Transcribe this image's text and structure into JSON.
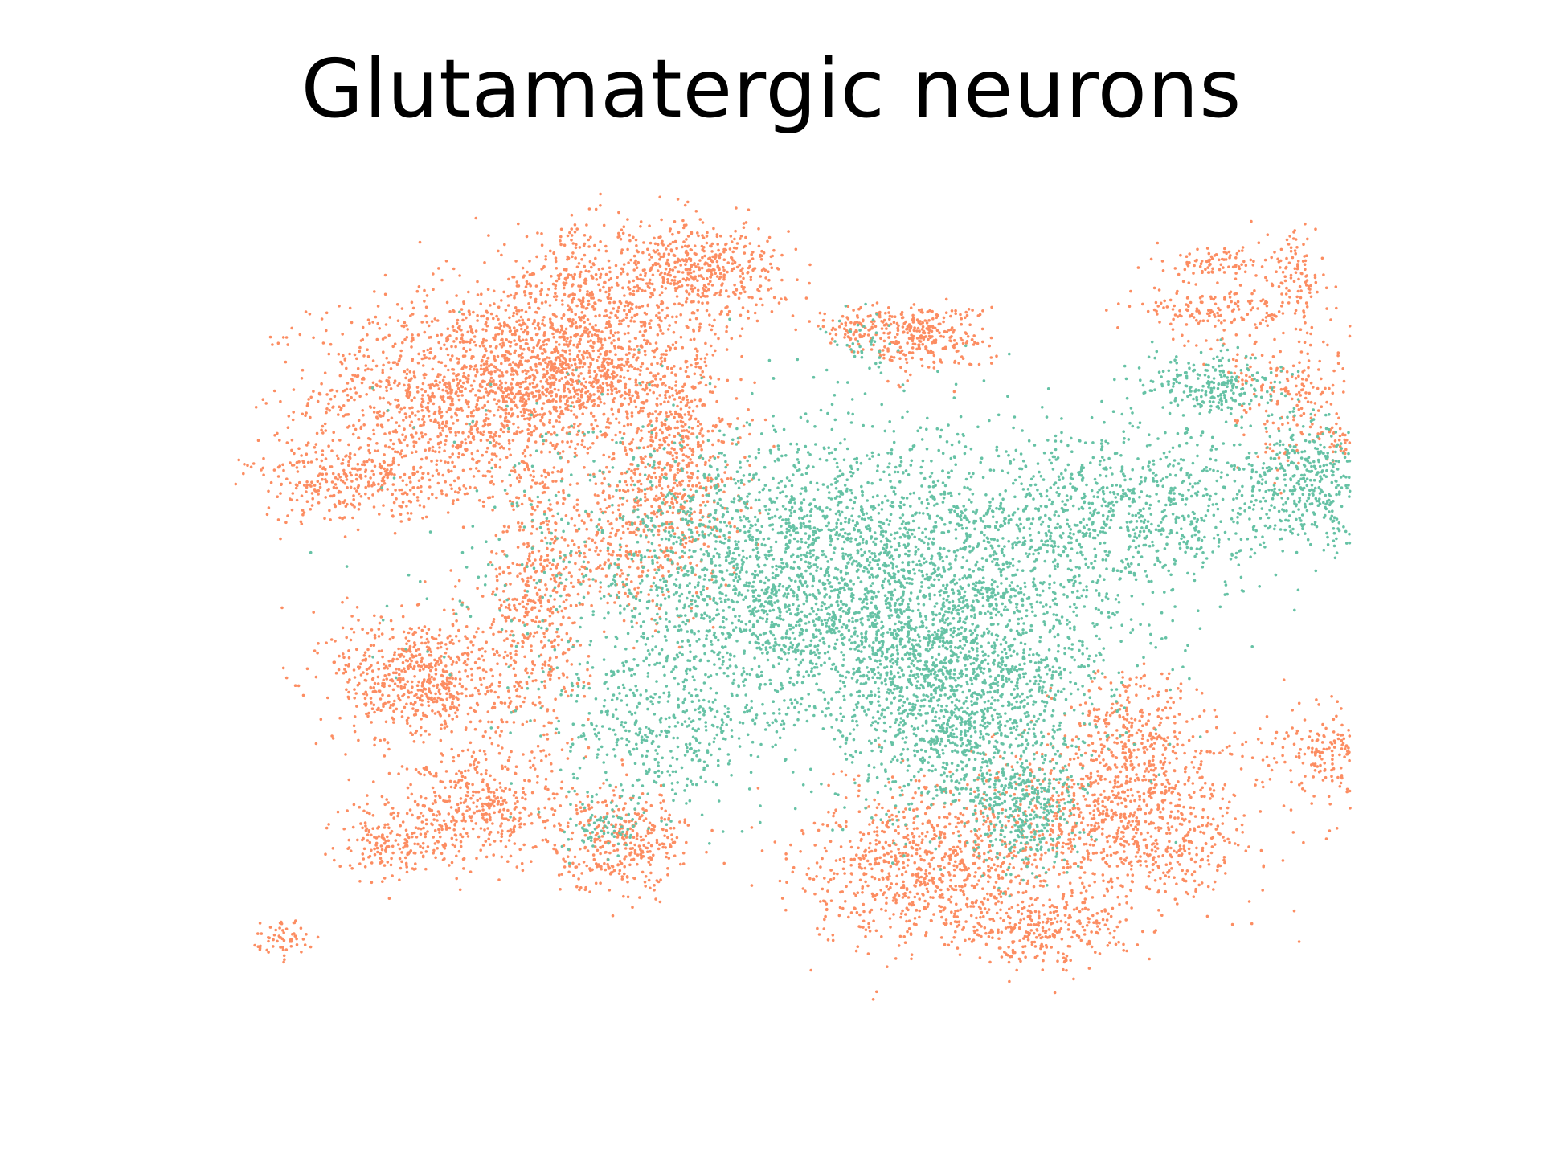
{
  "chart_data": {
    "type": "scatter",
    "title": "Glutamatergic neurons",
    "axes_visible": false,
    "grid": false,
    "legend": "none",
    "point_size": 3,
    "xlim": [
      0,
      1
    ],
    "ylim": [
      0,
      1
    ],
    "series": [
      {
        "color": "#fc8d62",
        "clusters": [
          {
            "cx": 0.2,
            "cy": 0.74,
            "sx": 0.07,
            "sy": 0.06,
            "n": 1300
          },
          {
            "cx": 0.31,
            "cy": 0.76,
            "sx": 0.045,
            "sy": 0.04,
            "n": 650
          },
          {
            "cx": 0.4,
            "cy": 0.66,
            "sx": 0.03,
            "sy": 0.08,
            "n": 650
          },
          {
            "cx": 0.31,
            "cy": 0.85,
            "sx": 0.05,
            "sy": 0.045,
            "n": 500
          },
          {
            "cx": 0.42,
            "cy": 0.89,
            "sx": 0.04,
            "sy": 0.03,
            "n": 500
          },
          {
            "cx": 0.1,
            "cy": 0.63,
            "sx": 0.05,
            "sy": 0.025,
            "n": 350
          },
          {
            "cx": 0.27,
            "cy": 0.48,
            "sx": 0.025,
            "sy": 0.09,
            "n": 500
          },
          {
            "cx": 0.16,
            "cy": 0.39,
            "sx": 0.04,
            "sy": 0.04,
            "n": 650
          },
          {
            "cx": 0.34,
            "cy": 0.57,
            "sx": 0.03,
            "sy": 0.05,
            "n": 250
          },
          {
            "cx": 0.63,
            "cy": 0.81,
            "sx": 0.03,
            "sy": 0.02,
            "n": 280
          },
          {
            "cx": 0.57,
            "cy": 0.82,
            "sx": 0.02,
            "sy": 0.015,
            "n": 90
          },
          {
            "cx": 0.82,
            "cy": 0.21,
            "sx": 0.06,
            "sy": 0.05,
            "n": 900
          },
          {
            "cx": 0.64,
            "cy": 0.16,
            "sx": 0.06,
            "sy": 0.05,
            "n": 900
          },
          {
            "cx": 0.83,
            "cy": 0.32,
            "sx": 0.03,
            "sy": 0.04,
            "n": 300
          },
          {
            "cx": 0.74,
            "cy": 0.08,
            "sx": 0.04,
            "sy": 0.02,
            "n": 250
          },
          {
            "cx": 0.22,
            "cy": 0.23,
            "sx": 0.04,
            "sy": 0.035,
            "n": 400
          },
          {
            "cx": 0.35,
            "cy": 0.19,
            "sx": 0.03,
            "sy": 0.03,
            "n": 350
          },
          {
            "cx": 0.14,
            "cy": 0.19,
            "sx": 0.03,
            "sy": 0.025,
            "n": 200
          },
          {
            "cx": 0.03,
            "cy": 0.07,
            "sx": 0.012,
            "sy": 0.012,
            "n": 60
          },
          {
            "cx": 0.9,
            "cy": 0.84,
            "sx": 0.035,
            "sy": 0.015,
            "n": 150
          },
          {
            "cx": 0.91,
            "cy": 0.9,
            "sx": 0.025,
            "sy": 0.01,
            "n": 90
          },
          {
            "cx": 0.98,
            "cy": 0.88,
            "sx": 0.015,
            "sy": 0.035,
            "n": 110
          },
          {
            "cx": 1.02,
            "cy": 0.68,
            "sx": 0.015,
            "sy": 0.015,
            "n": 40
          },
          {
            "cx": 0.98,
            "cy": 0.74,
            "sx": 0.035,
            "sy": 0.04,
            "n": 200
          },
          {
            "cx": 1.03,
            "cy": 0.3,
            "sx": 0.04,
            "sy": 0.03,
            "n": 300
          },
          {
            "cx": 1.07,
            "cy": 0.25,
            "sx": 0.015,
            "sy": 0.025,
            "n": 150
          }
        ]
      },
      {
        "color": "#66c2a5",
        "clusters": [
          {
            "cx": 0.5,
            "cy": 0.51,
            "sx": 0.1,
            "sy": 0.09,
            "n": 2400
          },
          {
            "cx": 0.67,
            "cy": 0.46,
            "sx": 0.08,
            "sy": 0.1,
            "n": 1800
          },
          {
            "cx": 0.66,
            "cy": 0.34,
            "sx": 0.05,
            "sy": 0.06,
            "n": 700
          },
          {
            "cx": 0.73,
            "cy": 0.23,
            "sx": 0.025,
            "sy": 0.04,
            "n": 350
          },
          {
            "cx": 0.83,
            "cy": 0.6,
            "sx": 0.08,
            "sy": 0.05,
            "n": 800
          },
          {
            "cx": 0.99,
            "cy": 0.63,
            "sx": 0.03,
            "sy": 0.04,
            "n": 400
          },
          {
            "cx": 0.9,
            "cy": 0.75,
            "sx": 0.035,
            "sy": 0.02,
            "n": 250
          },
          {
            "cx": 0.38,
            "cy": 0.33,
            "sx": 0.05,
            "sy": 0.05,
            "n": 400
          },
          {
            "cx": 0.33,
            "cy": 0.21,
            "sx": 0.02,
            "sy": 0.02,
            "n": 80
          },
          {
            "cx": 0.57,
            "cy": 0.8,
            "sx": 0.02,
            "sy": 0.03,
            "n": 40
          },
          {
            "cx": 0.3,
            "cy": 0.68,
            "sx": 0.06,
            "sy": 0.06,
            "n": 60
          },
          {
            "cx": 0.22,
            "cy": 0.49,
            "sx": 0.06,
            "sy": 0.05,
            "n": 40
          }
        ]
      }
    ]
  }
}
